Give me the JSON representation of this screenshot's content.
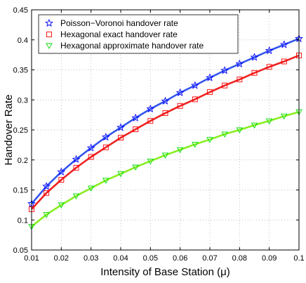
{
  "chart_data": {
    "type": "line",
    "title": "",
    "xlabel": "Intensity of Base Station (μ)",
    "ylabel": "Handover Rate",
    "xlim": [
      0.01,
      0.1
    ],
    "ylim": [
      0.05,
      0.45
    ],
    "grid": true,
    "legend_position": "top-left",
    "x_ticks": [
      0.01,
      0.02,
      0.03,
      0.04,
      0.05,
      0.06,
      0.07,
      0.08,
      0.09,
      0.1
    ],
    "x_tick_labels": [
      "0.01",
      "0.02",
      "0.03",
      "0.04",
      "0.05",
      "0.06",
      "0.07",
      "0.08",
      "0.09",
      "0.1"
    ],
    "y_ticks": [
      0.05,
      0.1,
      0.15,
      0.2,
      0.25,
      0.3,
      0.35,
      0.4,
      0.45
    ],
    "y_tick_labels": [
      "0.05",
      "0.1",
      "0.15",
      "0.2",
      "0.25",
      "0.3",
      "0.35",
      "0.4",
      "0.45"
    ],
    "x": [
      0.01,
      0.015,
      0.02,
      0.025,
      0.03,
      0.035,
      0.04,
      0.045,
      0.05,
      0.055,
      0.06,
      0.065,
      0.07,
      0.075,
      0.08,
      0.085,
      0.09,
      0.095,
      0.1
    ],
    "series": [
      {
        "name": "Poisson−Voronoi handover rate",
        "color": "#0000ff",
        "line_color": "#3355ee",
        "marker": "star",
        "values": [
          0.127,
          0.156,
          0.18,
          0.201,
          0.22,
          0.238,
          0.254,
          0.27,
          0.285,
          0.298,
          0.312,
          0.324,
          0.337,
          0.349,
          0.36,
          0.371,
          0.382,
          0.392,
          0.402
        ]
      },
      {
        "name": "Hexagonal exact handover rate",
        "color": "#ff0000",
        "line_color": "#ee2222",
        "marker": "square",
        "values": [
          0.118,
          0.145,
          0.167,
          0.187,
          0.205,
          0.221,
          0.237,
          0.251,
          0.265,
          0.278,
          0.29,
          0.301,
          0.313,
          0.324,
          0.334,
          0.345,
          0.355,
          0.364,
          0.374
        ]
      },
      {
        "name": "Hexagonal approximate handover rate",
        "color": "#00dd00",
        "line_color": "#88ee22",
        "marker": "triangle-down",
        "values": [
          0.089,
          0.109,
          0.125,
          0.14,
          0.153,
          0.166,
          0.177,
          0.188,
          0.198,
          0.208,
          0.217,
          0.226,
          0.234,
          0.243,
          0.25,
          0.258,
          0.265,
          0.273,
          0.28
        ]
      }
    ]
  }
}
